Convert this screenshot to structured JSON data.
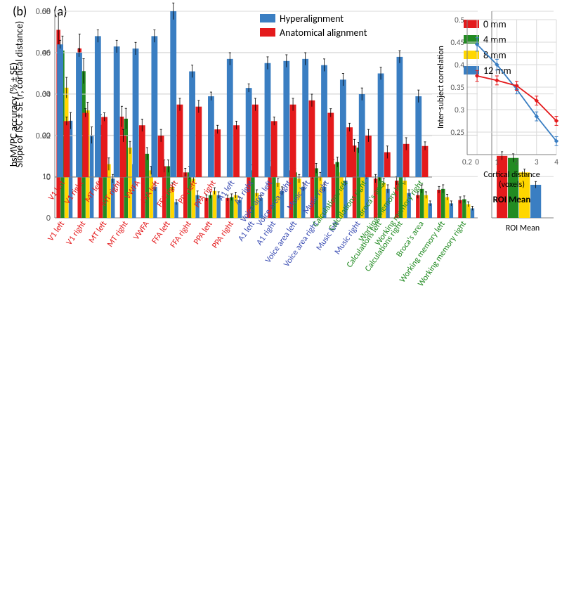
{
  "panel_a": {
    "label": "(a)",
    "ylabel": "bsMVPC accuracy (% ± SE)",
    "label_fontsize": 14,
    "ylim": [
      0,
      50
    ],
    "ytick_step": 10,
    "conditions": [
      "0 mm",
      "4 mm",
      "8 mm",
      "12 mm"
    ],
    "condition_colors": [
      "#e41a1c",
      "#228b22",
      "#ffd700",
      "#3a7ec2"
    ],
    "grid_color": "#d8d8d8",
    "axis_color": "#808080",
    "background_color": "#ffffff",
    "roi_mean_label": "ROI Mean",
    "categories": [
      {
        "label": "V1 left",
        "label_color": "#e41a1c",
        "values": [
          45.5,
          40.5,
          31.5,
          23.5
        ],
        "se": [
          4.0,
          3.5,
          2.5,
          2.0
        ]
      },
      {
        "label": "V1 right",
        "label_color": "#e41a1c",
        "values": [
          41.0,
          35.5,
          26.0,
          20.0
        ],
        "se": [
          3.5,
          3.0,
          2.0,
          2.0
        ]
      },
      {
        "label": "MT left",
        "label_color": "#e41a1c",
        "values": [
          22.5,
          19.0,
          13.0,
          9.5
        ],
        "se": [
          2.5,
          2.0,
          1.5,
          1.0
        ]
      },
      {
        "label": "MT right",
        "label_color": "#e41a1c",
        "values": [
          24.5,
          24.0,
          17.0,
          13.0
        ],
        "se": [
          2.5,
          2.5,
          1.5,
          1.5
        ]
      },
      {
        "label": "VWFA",
        "label_color": "#e41a1c",
        "values": [
          14.0,
          15.5,
          11.5,
          7.5
        ],
        "se": [
          1.5,
          1.5,
          1.0,
          1.0
        ]
      },
      {
        "label": "FFA left",
        "label_color": "#e41a1c",
        "values": [
          12.5,
          12.5,
          7.5,
          3.8
        ],
        "se": [
          1.5,
          1.5,
          1.0,
          0.6
        ]
      },
      {
        "label": "FFA right",
        "label_color": "#e41a1c",
        "values": [
          11.0,
          11.0,
          9.5,
          5.5
        ],
        "se": [
          1.0,
          1.5,
          1.0,
          1.0
        ]
      },
      {
        "label": "PPA left",
        "label_color": "#e41a1c",
        "values": [
          4.8,
          5.5,
          6.5,
          5.5
        ],
        "se": [
          0.7,
          0.8,
          0.8,
          0.8
        ]
      },
      {
        "label": "PPA right",
        "label_color": "#e41a1c",
        "values": [
          4.8,
          5.0,
          5.5,
          4.3
        ],
        "se": [
          0.7,
          0.8,
          0.7,
          0.7
        ]
      },
      {
        "label": "A1 left",
        "label_color": "#3b4db3",
        "values": [
          15.5,
          11.5,
          6.0,
          4.8
        ],
        "se": [
          1.8,
          1.3,
          0.8,
          0.7
        ]
      },
      {
        "label": "A1 right",
        "label_color": "#3b4db3",
        "values": [
          12.5,
          12.5,
          8.5,
          6.5
        ],
        "se": [
          1.3,
          1.3,
          1.0,
          1.0
        ]
      },
      {
        "label": "Voice area left",
        "label_color": "#3b4db3",
        "values": [
          11.5,
          11.0,
          9.5,
          7.5
        ],
        "se": [
          1.0,
          1.0,
          1.0,
          1.0
        ]
      },
      {
        "label": "Voice area right",
        "label_color": "#3b4db3",
        "values": [
          10.5,
          12.0,
          10.0,
          7.5
        ],
        "se": [
          1.0,
          1.2,
          1.0,
          1.0
        ]
      },
      {
        "label": "Music left",
        "label_color": "#3b4db3",
        "values": [
          13.0,
          13.5,
          11.0,
          9.0
        ],
        "se": [
          1.2,
          1.2,
          1.0,
          1.0
        ]
      },
      {
        "label": "Music right",
        "label_color": "#3b4db3",
        "values": [
          17.5,
          17.0,
          13.5,
          10.5
        ],
        "se": [
          1.5,
          1.3,
          1.2,
          1.0
        ]
      },
      {
        "label": "Calculations left",
        "label_color": "#228b22",
        "values": [
          9.5,
          10.0,
          8.5,
          7.0
        ],
        "se": [
          1.0,
          1.0,
          1.0,
          1.0
        ]
      },
      {
        "label": "Calculations right",
        "label_color": "#228b22",
        "values": [
          9.0,
          11.5,
          9.0,
          6.0
        ],
        "se": [
          1.0,
          1.3,
          1.0,
          0.8
        ]
      },
      {
        "label": "Broca's area",
        "label_color": "#228b22",
        "values": [
          5.5,
          7.0,
          5.5,
          3.5
        ],
        "se": [
          0.8,
          1.0,
          0.8,
          0.6
        ]
      },
      {
        "label": "Working memory left",
        "label_color": "#228b22",
        "values": [
          6.8,
          7.0,
          5.0,
          3.5
        ],
        "se": [
          0.8,
          1.0,
          0.7,
          0.6
        ]
      },
      {
        "label": "Working memory right",
        "label_color": "#228b22",
        "values": [
          4.3,
          4.5,
          3.3,
          2.3
        ],
        "se": [
          0.8,
          0.8,
          0.6,
          0.5
        ]
      }
    ],
    "roi_mean": {
      "values": [
        15.0,
        14.5,
        11.0,
        8.0
      ],
      "se": [
        1.0,
        1.0,
        0.8,
        0.8
      ]
    }
  },
  "panel_b": {
    "label": "(b)",
    "ylabel": "Slope of ISC ± SE (r, cortical distance)",
    "label_fontsize": 14,
    "ylim": [
      0,
      0.08
    ],
    "ytick_step": 0.02,
    "conditions": [
      "Hyperalignment",
      "Anatomical alignment"
    ],
    "condition_colors": [
      "#3a7ec2",
      "#e41a1c"
    ],
    "grid_color": "#d8d8d8",
    "axis_color": "#808080",
    "background_color": "#ffffff",
    "categories": [
      {
        "label": "V1 left",
        "label_color": "#e41a1c",
        "values": [
          0.064,
          0.027
        ],
        "se": [
          0.002,
          0.002
        ]
      },
      {
        "label": "V1 right",
        "label_color": "#e41a1c",
        "values": [
          0.06,
          0.031
        ],
        "se": [
          0.002,
          0.002
        ]
      },
      {
        "label": "MT left",
        "label_color": "#e41a1c",
        "values": [
          0.068,
          0.029
        ],
        "se": [
          0.003,
          0.002
        ]
      },
      {
        "label": "MT right",
        "label_color": "#e41a1c",
        "values": [
          0.063,
          0.02
        ],
        "se": [
          0.003,
          0.003
        ]
      },
      {
        "label": "VWFA",
        "label_color": "#e41a1c",
        "values": [
          0.062,
          0.025
        ],
        "se": [
          0.003,
          0.003
        ]
      },
      {
        "label": "FFA left",
        "label_color": "#e41a1c",
        "values": [
          0.068,
          0.02
        ],
        "se": [
          0.003,
          0.003
        ]
      },
      {
        "label": "FFA right",
        "label_color": "#e41a1c",
        "values": [
          0.08,
          0.035
        ],
        "se": [
          0.004,
          0.003
        ]
      },
      {
        "label": "PPA left",
        "label_color": "#e41a1c",
        "values": [
          0.051,
          0.034
        ],
        "se": [
          0.003,
          0.003
        ]
      },
      {
        "label": "PPA right",
        "label_color": "#e41a1c",
        "values": [
          0.039,
          0.023
        ],
        "se": [
          0.002,
          0.002
        ]
      },
      {
        "label": "A1 left",
        "label_color": "#3b4db3",
        "values": [
          0.057,
          0.025
        ],
        "se": [
          0.003,
          0.002
        ]
      },
      {
        "label": "A1 right",
        "label_color": "#3b4db3",
        "values": [
          0.043,
          0.035
        ],
        "se": [
          0.002,
          0.003
        ]
      },
      {
        "label": "Voice area left",
        "label_color": "#3b4db3",
        "values": [
          0.055,
          0.027
        ],
        "se": [
          0.003,
          0.002
        ]
      },
      {
        "label": "Voice area right",
        "label_color": "#3b4db3",
        "values": [
          0.056,
          0.035
        ],
        "se": [
          0.003,
          0.003
        ]
      },
      {
        "label": "Music left",
        "label_color": "#3b4db3",
        "values": [
          0.057,
          0.037
        ],
        "se": [
          0.003,
          0.003
        ]
      },
      {
        "label": "Music right",
        "label_color": "#3b4db3",
        "values": [
          0.054,
          0.031
        ],
        "se": [
          0.003,
          0.002
        ]
      },
      {
        "label": "Calculations left",
        "label_color": "#228b22",
        "values": [
          0.047,
          0.024
        ],
        "se": [
          0.003,
          0.002
        ]
      },
      {
        "label": "Calculations right",
        "label_color": "#228b22",
        "values": [
          0.04,
          0.02
        ],
        "se": [
          0.003,
          0.003
        ]
      },
      {
        "label": "Broca's area",
        "label_color": "#228b22",
        "values": [
          0.05,
          0.012
        ],
        "se": [
          0.003,
          0.003
        ]
      },
      {
        "label": "Working memory left",
        "label_color": "#228b22",
        "values": [
          0.058,
          0.016
        ],
        "se": [
          0.003,
          0.003
        ]
      },
      {
        "label": "Working memory right",
        "label_color": "#228b22",
        "values": [
          0.039,
          0.015
        ],
        "se": [
          0.003,
          0.002
        ]
      }
    ]
  },
  "panel_b_mean": {
    "type": "line",
    "title": "ROI Mean",
    "ylabel": "Inter-subject correlation",
    "xlabel": "Cortical distance (voxels)",
    "x_values": [
      0,
      1,
      2,
      3,
      4
    ],
    "xtick_labels": [
      "0.2",
      "0",
      "1",
      "2",
      "3",
      "4"
    ],
    "xtick_positions": [
      -0.5,
      0,
      1,
      2,
      3,
      4
    ],
    "ylim": [
      0.2,
      0.5
    ],
    "yticks": [
      0.25,
      0.3,
      0.35,
      0.4,
      0.45,
      0.5
    ],
    "series": [
      {
        "name": "Hyperalignment",
        "color": "#3a7ec2",
        "values": [
          0.445,
          0.4,
          0.345,
          0.285,
          0.23
        ],
        "se": [
          0.015,
          0.012,
          0.01,
          0.01,
          0.01
        ]
      },
      {
        "name": "Anatomical alignment",
        "color": "#e41a1c",
        "values": [
          0.375,
          0.365,
          0.353,
          0.32,
          0.275
        ],
        "se": [
          0.012,
          0.01,
          0.01,
          0.01,
          0.01
        ]
      }
    ],
    "grid_color": "#d8d8d8",
    "axis_color": "#808080"
  }
}
